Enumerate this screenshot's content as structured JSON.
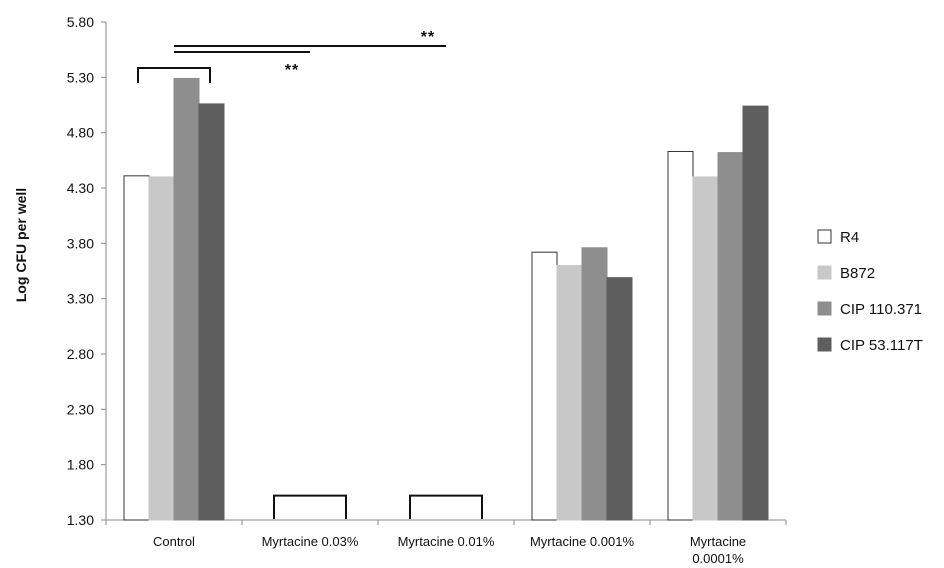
{
  "chart_data": {
    "type": "bar",
    "ylabel": "Log CFU per well",
    "ylim": [
      1.3,
      5.8
    ],
    "yticks": [
      "5.80",
      "5.30",
      "4.80",
      "4.30",
      "3.80",
      "3.30",
      "2.80",
      "2.30",
      "1.80",
      "1.30"
    ],
    "categories": [
      [
        "Control"
      ],
      [
        "Myrtacine 0.03%"
      ],
      [
        "Myrtacine  0.01%"
      ],
      [
        "Myrtacine  0.001%"
      ],
      [
        "Myrtacine",
        "0.0001%"
      ]
    ],
    "series": [
      {
        "name": "R4",
        "color": "#ffffff",
        "values": [
          4.41,
          null,
          null,
          3.72,
          4.63
        ]
      },
      {
        "name": "B872",
        "color": "#c8c8c8",
        "values": [
          4.4,
          null,
          null,
          3.6,
          4.4
        ]
      },
      {
        "name": "CIP 110.371",
        "color": "#8e8e8e",
        "values": [
          5.29,
          null,
          null,
          3.76,
          4.62
        ]
      },
      {
        "name": "CIP 53.117T",
        "color": "#5e5e5e",
        "values": [
          5.06,
          null,
          null,
          3.49,
          5.04
        ]
      }
    ],
    "annotations": [
      {
        "type": "bracket",
        "category": 0,
        "text": ""
      },
      {
        "type": "bracket",
        "category": 1,
        "text": ""
      },
      {
        "type": "bracket",
        "category": 2,
        "text": ""
      },
      {
        "type": "significance-line",
        "from": "Control",
        "to": "Myrtacine 0.03%",
        "text": "**"
      },
      {
        "type": "significance-line",
        "from": "Control",
        "to": "Myrtacine 0.01%",
        "text": "**"
      }
    ],
    "legend": "right",
    "grid": false
  }
}
